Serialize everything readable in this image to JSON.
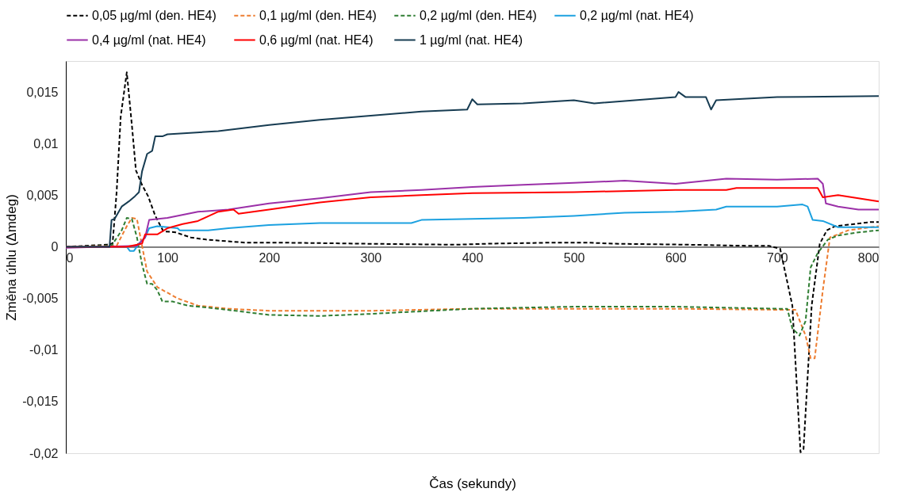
{
  "chart_data": {
    "type": "line",
    "xlabel": "Čas (sekundy)",
    "ylabel": "Změna úhlu (Δmdeg)",
    "xlim": [
      0,
      800
    ],
    "xticks": [
      0,
      100,
      200,
      300,
      400,
      500,
      600,
      700,
      800
    ],
    "ylim": [
      -0.02,
      0.018
    ],
    "yticks": [
      {
        "value": -0.02,
        "label": "-0,02"
      },
      {
        "value": -0.015,
        "label": "-0,015"
      },
      {
        "value": -0.01,
        "label": "-0,01"
      },
      {
        "value": -0.005,
        "label": "-0,005"
      },
      {
        "value": 0,
        "label": "0"
      },
      {
        "value": 0.005,
        "label": "0,005"
      },
      {
        "value": 0.01,
        "label": "0,01"
      },
      {
        "value": 0.015,
        "label": "0,015"
      }
    ],
    "grid": false,
    "legend": "top",
    "marker": "none",
    "series": [
      {
        "name": "0,05 µg/ml (den. HE4)",
        "color": "#000000",
        "line_style": "dashed",
        "x": [
          0,
          40,
          45,
          46,
          50,
          54,
          60,
          65,
          69,
          75,
          81,
          88,
          96,
          108,
          123,
          138,
          177,
          215,
          292,
          384,
          415,
          477,
          515,
          538,
          615,
          669,
          692,
          703,
          715,
          723,
          726,
          734,
          742,
          749,
          757,
          776,
          792,
          800
        ],
        "values": [
          0,
          0.0002,
          0.0003,
          0.0003,
          0.0053,
          0.0126,
          0.0169,
          0.0118,
          0.0074,
          0.006,
          0.0049,
          0.003,
          0.0015,
          0.0014,
          0.0009,
          0.0007,
          0.0004,
          0.0004,
          0.0003,
          0.0002,
          0.0003,
          0.0004,
          0.0004,
          0.0003,
          0.0002,
          0.0001,
          0.0001,
          -0.0002,
          -0.0057,
          -0.0199,
          -0.0196,
          -0.0057,
          0.0003,
          0.0016,
          0.002,
          0.0022,
          0.0024,
          0.0024
        ]
      },
      {
        "name": "0,1 µg/ml (den. HE4)",
        "color": "#ed7d31",
        "line_style": "dashed",
        "x": [
          0,
          50,
          60,
          65,
          70,
          75,
          80,
          90,
          110,
          130,
          160,
          200,
          300,
          400,
          500,
          600,
          700,
          718,
          728,
          733,
          737,
          745,
          752,
          770,
          800
        ],
        "values": [
          0,
          0.0001,
          0.002,
          0.0028,
          0.0027,
          0.0001,
          -0.0024,
          -0.0039,
          -0.005,
          -0.0057,
          -0.006,
          -0.0062,
          -0.0062,
          -0.006,
          -0.006,
          -0.006,
          -0.0061,
          -0.0061,
          -0.0086,
          -0.0108,
          -0.0108,
          -0.0042,
          0.0009,
          0.0016,
          0.002
        ]
      },
      {
        "name": "0,2 µg/ml (den. HE4)",
        "color": "#2e7d32",
        "line_style": "dashed",
        "x": [
          0,
          45,
          55,
          60,
          65,
          70,
          75,
          80,
          85,
          90,
          95,
          105,
          120,
          150,
          200,
          250,
          300,
          400,
          500,
          600,
          700,
          710,
          715,
          722,
          728,
          733,
          740,
          750,
          760,
          780,
          800
        ],
        "values": [
          0,
          0.0001,
          0.0016,
          0.0028,
          0.0027,
          0.0009,
          -0.0017,
          -0.0036,
          -0.0036,
          -0.0042,
          -0.0053,
          -0.0053,
          -0.0057,
          -0.006,
          -0.0066,
          -0.0067,
          -0.0065,
          -0.006,
          -0.0058,
          -0.0058,
          -0.006,
          -0.006,
          -0.0079,
          -0.0086,
          -0.0072,
          -0.002,
          -0.0006,
          0.0007,
          0.0011,
          0.0014,
          0.0016
        ]
      },
      {
        "name": "0,2 µg/ml (nat. HE4)",
        "color": "#1ca1e0",
        "line_style": "solid",
        "x": [
          0,
          60,
          63,
          67,
          72,
          78,
          82,
          90,
          110,
          112,
          140,
          160,
          200,
          250,
          300,
          340,
          350,
          400,
          450,
          500,
          550,
          600,
          640,
          650,
          700,
          725,
          730,
          735,
          745,
          760,
          800
        ],
        "values": [
          0,
          0,
          -0.0004,
          -0.0004,
          0.0003,
          0.0009,
          0.0018,
          0.002,
          0.0018,
          0.0016,
          0.0016,
          0.0018,
          0.0021,
          0.0023,
          0.0023,
          0.0023,
          0.0026,
          0.0027,
          0.0028,
          0.003,
          0.0033,
          0.0034,
          0.0036,
          0.0039,
          0.0039,
          0.0041,
          0.0039,
          0.0026,
          0.0025,
          0.0019,
          0.0019
        ]
      },
      {
        "name": "0,4 µg/ml (nat. HE4)",
        "color": "#9b30a8",
        "line_style": "solid",
        "x": [
          0,
          70,
          78,
          82,
          100,
          130,
          160,
          200,
          250,
          300,
          350,
          400,
          450,
          500,
          550,
          600,
          650,
          700,
          740,
          745,
          748,
          760,
          780,
          800
        ],
        "values": [
          -0.0001,
          0.0001,
          0.0009,
          0.0026,
          0.0028,
          0.0034,
          0.0036,
          0.0042,
          0.0047,
          0.0053,
          0.0055,
          0.0058,
          0.006,
          0.0062,
          0.0064,
          0.0061,
          0.0066,
          0.0065,
          0.0066,
          0.0061,
          0.0042,
          0.0039,
          0.0036,
          0.0036
        ]
      },
      {
        "name": "0,6 µg/ml (nat. HE4)",
        "color": "#ff0000",
        "line_style": "solid",
        "x": [
          0,
          60,
          75,
          78,
          90,
          100,
          115,
          130,
          150,
          165,
          170,
          200,
          250,
          300,
          350,
          400,
          500,
          600,
          650,
          660,
          740,
          745,
          760,
          800
        ],
        "values": [
          0,
          0,
          0.0003,
          0.0012,
          0.0012,
          0.0018,
          0.0022,
          0.0025,
          0.0034,
          0.0036,
          0.0032,
          0.0036,
          0.0043,
          0.0048,
          0.005,
          0.0052,
          0.0053,
          0.0055,
          0.0055,
          0.0057,
          0.0057,
          0.0048,
          0.005,
          0.0044
        ]
      },
      {
        "name": "1 µg/ml (nat. HE4)",
        "color": "#173c52",
        "line_style": "solid",
        "x": [
          0,
          43,
          45,
          48,
          55,
          62,
          68,
          72,
          75,
          80,
          85,
          88,
          95,
          100,
          150,
          200,
          250,
          300,
          350,
          395,
          400,
          405,
          450,
          500,
          520,
          560,
          600,
          603,
          610,
          630,
          635,
          640,
          700,
          800
        ],
        "values": [
          0,
          0,
          0.0026,
          0.0027,
          0.0039,
          0.0044,
          0.0049,
          0.0053,
          0.0073,
          0.009,
          0.0093,
          0.0107,
          0.0107,
          0.0109,
          0.0112,
          0.0118,
          0.0123,
          0.0127,
          0.0131,
          0.0133,
          0.0143,
          0.0138,
          0.0139,
          0.0142,
          0.0139,
          0.0142,
          0.0145,
          0.015,
          0.0145,
          0.0145,
          0.0133,
          0.0142,
          0.0145,
          0.0146
        ]
      }
    ]
  }
}
